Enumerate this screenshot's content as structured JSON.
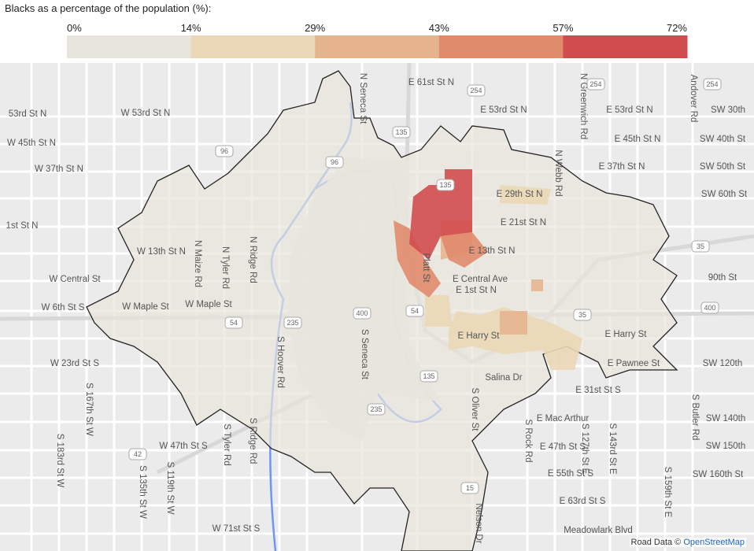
{
  "legend": {
    "title": "Blacks as a percentage of the population (%):",
    "ticks": [
      {
        "value": 0,
        "label": "0%"
      },
      {
        "value": 14,
        "label": "14%"
      },
      {
        "value": 29,
        "label": "29%"
      },
      {
        "value": 43,
        "label": "43%"
      },
      {
        "value": 57,
        "label": "57%"
      },
      {
        "value": 72,
        "label": "72%"
      }
    ],
    "colors": [
      "#e8e6dc",
      "#ead8b6",
      "#e5b48f",
      "#e08b6c",
      "#d14c4e"
    ]
  },
  "map": {
    "street_labels": [
      "E 61st St N",
      "W 53rd St N",
      "53rd St N",
      "E 53rd St N",
      "E 53rd St N",
      "W 45th St N",
      "E 45th St N",
      "W 37th St N",
      "E 37th St N",
      "E 29th St N",
      "E 21st St N",
      "E 13th St N",
      "W 13th St N",
      "1st St N",
      "W Central St",
      "E Central Ave",
      "E 1st St N",
      "W Maple St",
      "W Maple St",
      "W 6th St S",
      "E Harry St",
      "E Harry St",
      "W 23rd St S",
      "E Pawnee St",
      "Salina Dr",
      "E 31st St S",
      "E Mac Arthur",
      "E 47th St S",
      "W 47th St S",
      "E 55th St S",
      "E 63rd St S",
      "W 71st St S",
      "Meadowlark Blvd",
      "SW 30th",
      "SW 40th St",
      "SW 50th St",
      "SW 60th St",
      "90th St",
      "SW 120th",
      "SW 140th",
      "SW 150th",
      "SW 160th St",
      "N Seneca St",
      "N Maize Rd",
      "N Tyler Rd",
      "N Ridge Rd",
      "S Seneca St",
      "S Hoover Rd",
      "N Webb Rd",
      "N Greenwich Rd",
      "Andover Rd",
      "S Oliver St",
      "S Rock Rd",
      "S Tyler Rd",
      "S Ridge Rd",
      "Nelson Dr",
      "S 183rd St W",
      "S 135th St W",
      "S 119th St W",
      "S 167th St W",
      "S 143rd St E",
      "S 159th St E",
      "S Butler Rd",
      "S 127th St E",
      "Platt St"
    ],
    "shields": [
      "254",
      "254",
      "254",
      "96",
      "96",
      "135",
      "135",
      "135",
      "400",
      "400",
      "54",
      "54",
      "235",
      "235",
      "35",
      "35",
      "15",
      "42"
    ],
    "attribution": {
      "prefix": "Road Data ©",
      "link": "OpenStreetMap"
    }
  }
}
